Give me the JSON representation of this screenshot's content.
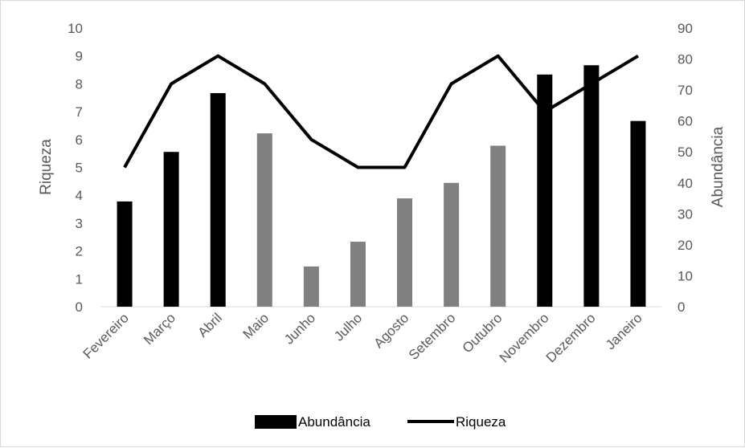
{
  "chart_data": {
    "type": "bar",
    "categories": [
      "Fevereiro",
      "Março",
      "Abril",
      "Maio",
      "Junho",
      "Julho",
      "Agosto",
      "Setembro",
      "Outubro",
      "Novembro",
      "Dezembro",
      "Janeiro"
    ],
    "series": [
      {
        "name": "Abundância",
        "type": "bar",
        "axis": "right",
        "values": [
          34,
          50,
          69,
          56,
          13,
          21,
          35,
          40,
          52,
          75,
          78,
          60
        ],
        "colors": [
          "#000000",
          "#000000",
          "#000000",
          "#808080",
          "#808080",
          "#808080",
          "#808080",
          "#808080",
          "#808080",
          "#000000",
          "#000000",
          "#000000"
        ]
      },
      {
        "name": "Riqueza",
        "type": "line",
        "axis": "left",
        "color": "#000000",
        "values": [
          5,
          8,
          9,
          8,
          6,
          5,
          5,
          8,
          9,
          7,
          8,
          9
        ]
      }
    ],
    "y_left": {
      "label": "Riqueza",
      "lim": [
        0,
        10
      ],
      "ticks": [
        "0",
        "1",
        "2",
        "3",
        "4",
        "5",
        "6",
        "7",
        "8",
        "9",
        "10"
      ]
    },
    "y_right": {
      "label": "Abundância",
      "lim": [
        0,
        90
      ],
      "ticks": [
        "0",
        "10",
        "20",
        "30",
        "40",
        "50",
        "60",
        "70",
        "80",
        "90"
      ]
    },
    "grid": false,
    "legend": {
      "position": "bottom",
      "entries": [
        "Abundância",
        "Riqueza"
      ]
    }
  }
}
